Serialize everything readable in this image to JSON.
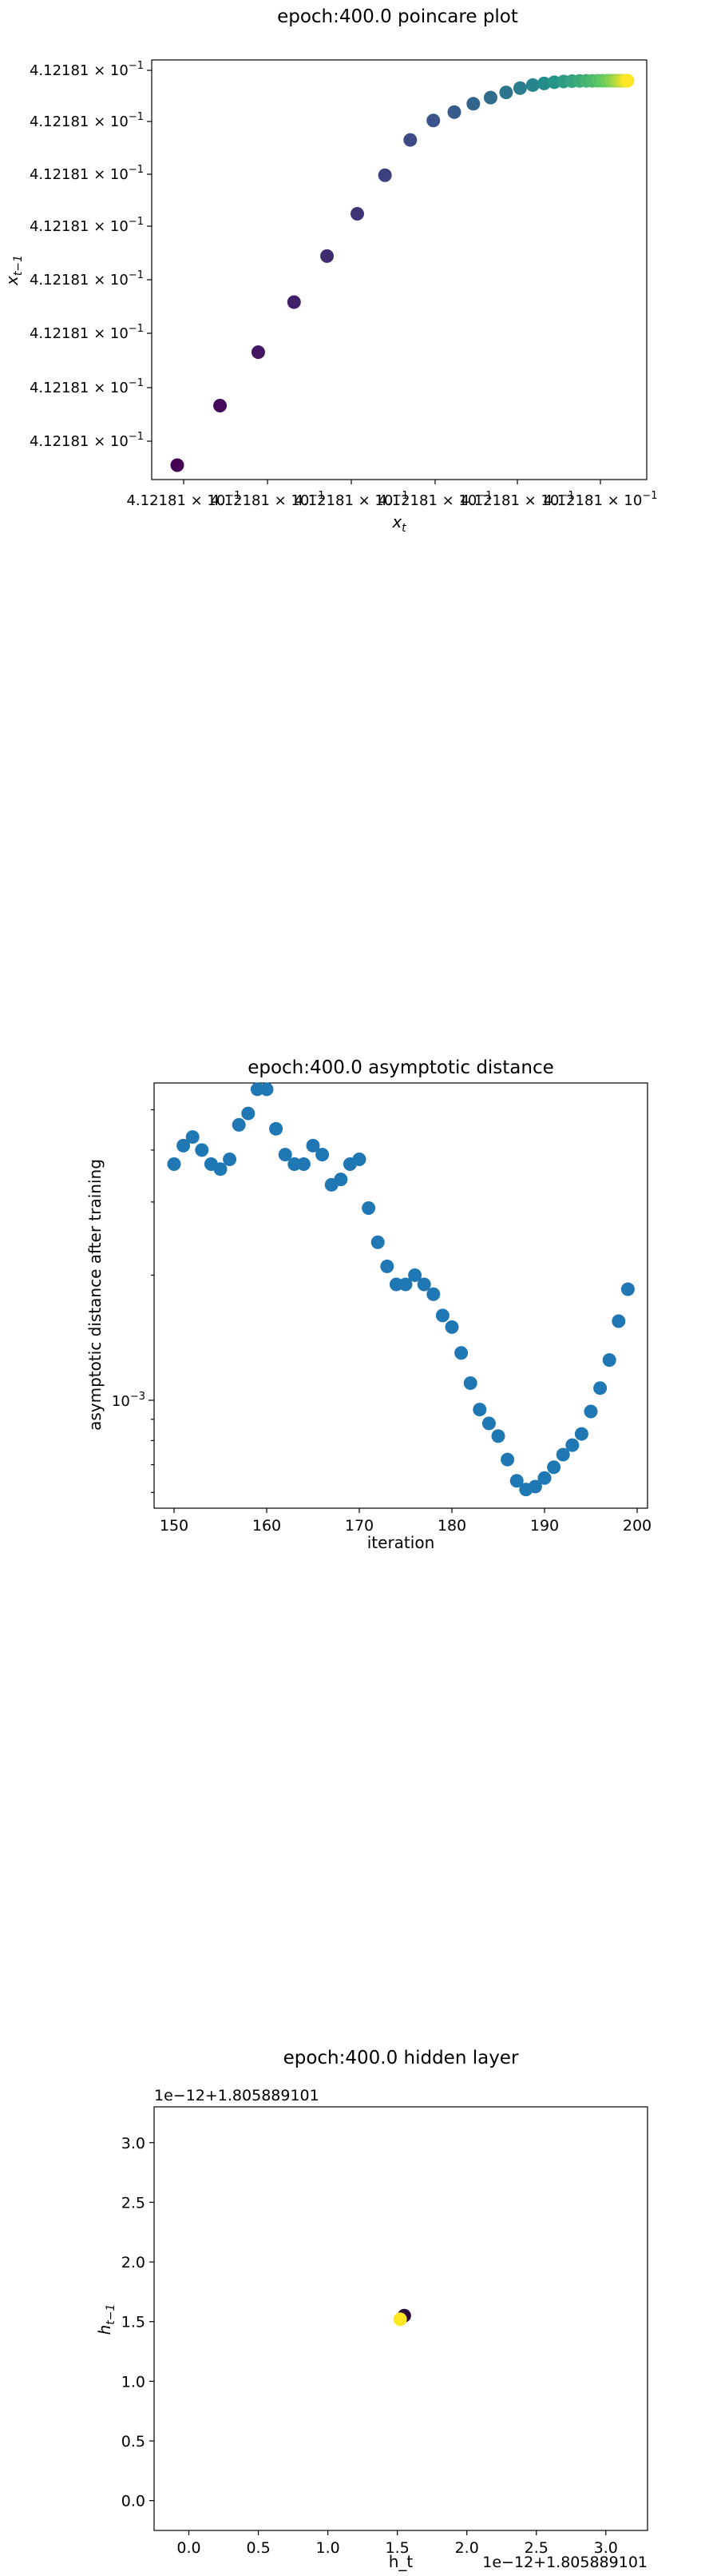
{
  "chart_data": [
    {
      "type": "scatter",
      "title": "epoch:400.0 poincare plot",
      "xlabel": "x_t",
      "ylabel": "x_{t-1}",
      "colormap": "viridis",
      "grid": false,
      "ytick_labels": [
        "4.12181 × 10^−1",
        "4.12181 × 10^−1",
        "4.12181 × 10^−1",
        "4.12181 × 10^−1",
        "4.12181 × 10^−1",
        "4.12181 × 10^−1",
        "4.12181 × 10^−1",
        "4.12181 × 10^−1"
      ],
      "xtick_labels": [
        "4.12181 × 10^−1",
        "4.12181 × 10^−1",
        "4.12181 × 10^−1",
        "4.12181 × 10^−1",
        "4.12181 × 10^−1",
        "4.12181 × 10^−1"
      ],
      "points_relative": {
        "x": [
          0,
          0.0834,
          0.158,
          0.2278,
          0.2921,
          0.3512,
          0.4052,
          0.4545,
          0.4995,
          0.5404,
          0.5775,
          0.6112,
          0.6415,
          0.6688,
          0.6935,
          0.7157,
          0.7356,
          0.7537,
          0.77,
          0.7848,
          0.798,
          0.8099,
          0.8205,
          0.83,
          0.8385,
          0.8461,
          0.853,
          0.8592,
          0.8648,
          0.8698,
          0.8743,
          0.8784
        ],
        "y": [
          0,
          0.1549,
          0.294,
          0.4241,
          0.5439,
          0.6539,
          0.7542,
          0.846,
          0.8965,
          0.9184,
          0.9401,
          0.9561,
          0.9696,
          0.9807,
          0.9887,
          0.993,
          0.996,
          0.998,
          0.999,
          0.9994,
          0.9997,
          0.9998,
          0.9999,
          0.9999,
          1,
          1,
          1,
          1,
          1,
          1,
          1,
          1
        ]
      }
    },
    {
      "type": "scatter",
      "title": "epoch:400.0 asymptotic distance",
      "xlabel": "iteration",
      "ylabel": "asymptotic distance after training",
      "yscale": "log",
      "xlim": [
        148,
        201
      ],
      "ylim": [
        0.00055,
        0.0058
      ],
      "xticks": [
        150,
        160,
        170,
        180,
        190,
        200
      ],
      "ytick_major_labels": [
        {
          "value": 0.001,
          "label": "10^−3"
        }
      ],
      "grid": false,
      "color": "#1f77b4",
      "x": [
        150,
        151,
        152,
        153,
        154,
        155,
        156,
        157,
        158,
        159,
        160,
        161,
        162,
        163,
        164,
        165,
        166,
        167,
        168,
        169,
        170,
        171,
        172,
        173,
        174,
        175,
        176,
        177,
        178,
        179,
        180,
        181,
        182,
        183,
        184,
        185,
        186,
        187,
        188,
        189,
        190,
        191,
        192,
        193,
        194,
        195,
        196,
        197,
        198,
        199
      ],
      "y": [
        0.0037,
        0.0041,
        0.0043,
        0.004,
        0.0037,
        0.0036,
        0.0038,
        0.0046,
        0.0049,
        0.0056,
        0.0056,
        0.0045,
        0.0039,
        0.0037,
        0.0037,
        0.0041,
        0.0039,
        0.0033,
        0.0034,
        0.0037,
        0.0038,
        0.0029,
        0.0024,
        0.0021,
        0.0019,
        0.0019,
        0.002,
        0.0019,
        0.0018,
        0.0016,
        0.0015,
        0.0013,
        0.0011,
        0.00095,
        0.00088,
        0.00082,
        0.00072,
        0.00064,
        0.00061,
        0.00062,
        0.00065,
        0.00069,
        0.00074,
        0.00078,
        0.00083,
        0.00094,
        0.00107,
        0.00125,
        0.00155,
        0.00185
      ]
    },
    {
      "type": "scatter",
      "title": "epoch:400.0 hidden layer",
      "xlabel": "h_t",
      "ylabel": "h_{t-1}",
      "offset_label": "1e−12+1.805889101",
      "xlim": [
        -0.25,
        3.3
      ],
      "ylim": [
        -0.25,
        3.3
      ],
      "xticks": [
        "0.0",
        "0.5",
        "1.0",
        "1.5",
        "2.0",
        "2.5",
        "3.0"
      ],
      "yticks": [
        "0.0",
        "0.5",
        "1.0",
        "1.5",
        "2.0",
        "2.5",
        "3.0"
      ],
      "grid": false,
      "points": [
        {
          "x": 1.55,
          "y": 1.55,
          "color": "#2b0a3e"
        },
        {
          "x": 1.52,
          "y": 1.52,
          "color": "#fde725"
        }
      ]
    }
  ]
}
